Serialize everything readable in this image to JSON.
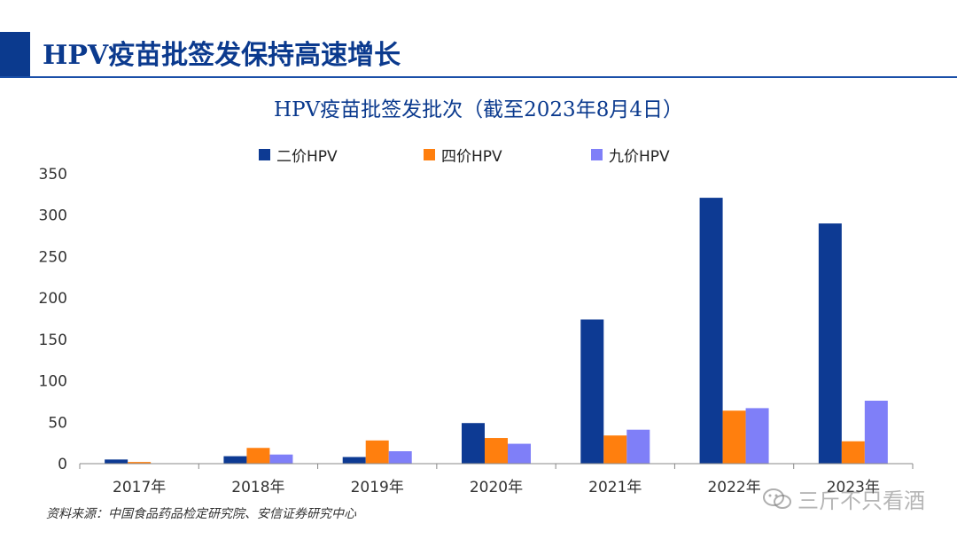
{
  "page": {
    "title": "HPV疫苗批签发保持高速增长",
    "source": "资料来源：中国食品药品检定研究院、安信证券研究中心",
    "watermark": "三斤不只看酒"
  },
  "colors": {
    "brand": "#0b3a8e",
    "series1": "#0d3a93",
    "series2": "#ff7f0e",
    "series3": "#7f7ff8"
  },
  "chart_data": {
    "type": "bar",
    "title": "HPV疫苗批签发批次（截至2023年8月4日）",
    "xlabel": "",
    "ylabel": "",
    "ylim": [
      0,
      350
    ],
    "yticks": [
      0,
      50,
      100,
      150,
      200,
      250,
      300,
      350
    ],
    "categories": [
      "2017年",
      "2018年",
      "2019年",
      "2020年",
      "2021年",
      "2022年",
      "2023年"
    ],
    "series": [
      {
        "name": "二价HPV",
        "values": [
          5,
          9,
          8,
          49,
          174,
          321,
          290
        ]
      },
      {
        "name": "四价HPV",
        "values": [
          2,
          19,
          28,
          31,
          34,
          64,
          27
        ]
      },
      {
        "name": "九价HPV",
        "values": [
          0,
          11,
          15,
          24,
          41,
          67,
          76
        ]
      }
    ],
    "legend": "top",
    "grid": false
  }
}
